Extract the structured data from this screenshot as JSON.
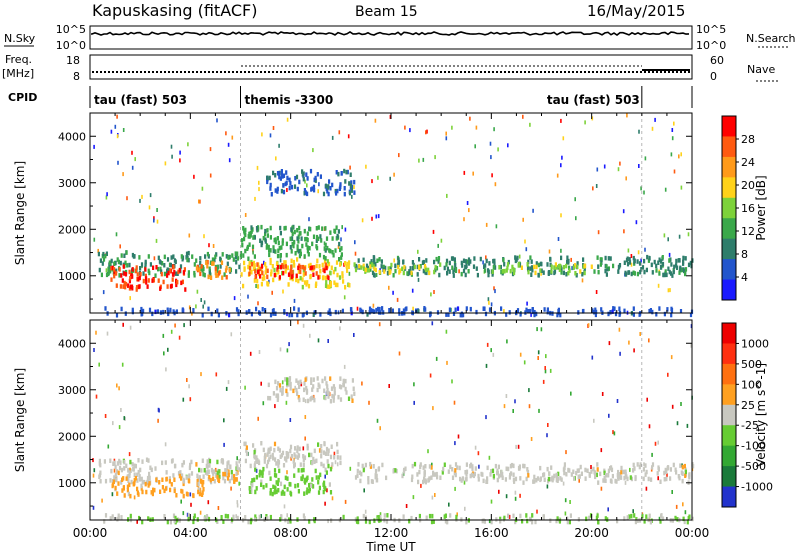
{
  "header": {
    "station": "Kapuskasing (fitACF)",
    "beam": "Beam 15",
    "date": "16/May/2015"
  },
  "status_panels": {
    "nsky_label": "N.Sky",
    "nsky_ticks": [
      "10^5",
      "10^0"
    ],
    "nsearch_label": "N.Search",
    "nsearch_ticks": [
      "10^5",
      "10^0"
    ],
    "freq_label": "Freq.",
    "freq_unit": "[MHz]",
    "freq_ticks": [
      "18",
      "8"
    ],
    "nave_label": "Nave",
    "nave_ticks": [
      "60",
      "0"
    ],
    "cpid_label": "CPID",
    "cpid_segments": [
      {
        "start": 0,
        "end": 6,
        "label": "tau (fast) 503"
      },
      {
        "start": 6,
        "end": 22,
        "label": "themis -3300"
      },
      {
        "start": 22,
        "end": 24,
        "label": "tau (fast) 503"
      }
    ]
  },
  "chart_data": [
    {
      "type": "heatmap",
      "title": "",
      "xlabel": "",
      "ylabel": "Slant Range [km]",
      "xlim": [
        0,
        24
      ],
      "ylim": [
        200,
        4500
      ],
      "yticks": [
        1000,
        2000,
        3000,
        4000
      ],
      "colorbar": {
        "label": "Power [dB]",
        "ticks": [
          "28",
          "24",
          "20",
          "16",
          "12",
          "8",
          "4"
        ],
        "range": [
          0,
          30
        ],
        "colors": [
          "#1a1aff",
          "#2255cc",
          "#2e7d6b",
          "#3aa84a",
          "#7dd23a",
          "#ffd21a",
          "#ff9a1a",
          "#ff5a10",
          "#ff0000"
        ]
      },
      "regions": [
        {
          "t0": 0.3,
          "t1": 6.0,
          "r0": 1050,
          "r1": 1550,
          "value": 10
        },
        {
          "t0": 0.8,
          "t1": 3.8,
          "r0": 750,
          "r1": 1250,
          "value": 27
        },
        {
          "t0": 4.2,
          "t1": 5.6,
          "r0": 1000,
          "r1": 1350,
          "value": 23
        },
        {
          "t0": 6.0,
          "t1": 10.3,
          "r0": 800,
          "r1": 1400,
          "value": 18
        },
        {
          "t0": 6.3,
          "t1": 9.5,
          "r0": 1000,
          "r1": 1300,
          "value": 26
        },
        {
          "t0": 6.0,
          "t1": 10.0,
          "r0": 1400,
          "r1": 2100,
          "value": 11
        },
        {
          "t0": 10.5,
          "t1": 24.0,
          "r0": 1050,
          "r1": 1450,
          "value": 9
        },
        {
          "t0": 10.5,
          "t1": 14.0,
          "r0": 1100,
          "r1": 1300,
          "value": 17
        },
        {
          "t0": 16.0,
          "t1": 20.0,
          "r0": 1100,
          "r1": 1300,
          "value": 16
        },
        {
          "t0": 7.0,
          "t1": 10.5,
          "r0": 2800,
          "r1": 3300,
          "value": 6
        },
        {
          "t0": 0.5,
          "t1": 24.0,
          "r0": 200,
          "r1": 350,
          "value": 5
        }
      ]
    },
    {
      "type": "heatmap",
      "title": "",
      "xlabel": "Time UT",
      "ylabel": "Slant Range [km]",
      "xlim": [
        0,
        24
      ],
      "ylim": [
        200,
        4500
      ],
      "xticks": [
        "00:00",
        "04:00",
        "08:00",
        "12:00",
        "16:00",
        "20:00",
        "00:00"
      ],
      "yticks": [
        1000,
        2000,
        3000,
        4000
      ],
      "colorbar": {
        "label": "Velocity [m s^-1]",
        "ticks": [
          "1000",
          "500",
          "100",
          "25",
          "-25",
          "-100",
          "-500",
          "-1000"
        ],
        "range": [
          -1000,
          1000
        ],
        "colors": [
          "#2233cc",
          "#1a7a3a",
          "#33a833",
          "#66cc33",
          "#c8c8c0",
          "#ffa020",
          "#ff7010",
          "#ff3010",
          "#ee0000"
        ]
      },
      "regions": [
        {
          "t0": 0.3,
          "t1": 6.0,
          "r0": 1050,
          "r1": 1550,
          "value": 0
        },
        {
          "t0": 0.8,
          "t1": 4.5,
          "r0": 750,
          "r1": 1150,
          "value": 200
        },
        {
          "t0": 4.5,
          "t1": 6.0,
          "r0": 1050,
          "r1": 1300,
          "value": 200
        },
        {
          "t0": 6.3,
          "t1": 9.6,
          "r0": 800,
          "r1": 1350,
          "value": -200
        },
        {
          "t0": 6.0,
          "t1": 10.0,
          "r0": 1400,
          "r1": 1900,
          "value": 0
        },
        {
          "t0": 10.5,
          "t1": 24.0,
          "r0": 1050,
          "r1": 1450,
          "value": 0
        },
        {
          "t0": 7.0,
          "t1": 10.5,
          "r0": 2800,
          "r1": 3300,
          "value": 0
        },
        {
          "t0": 0.5,
          "t1": 24.0,
          "r0": 200,
          "r1": 350,
          "value": -100
        }
      ]
    }
  ]
}
